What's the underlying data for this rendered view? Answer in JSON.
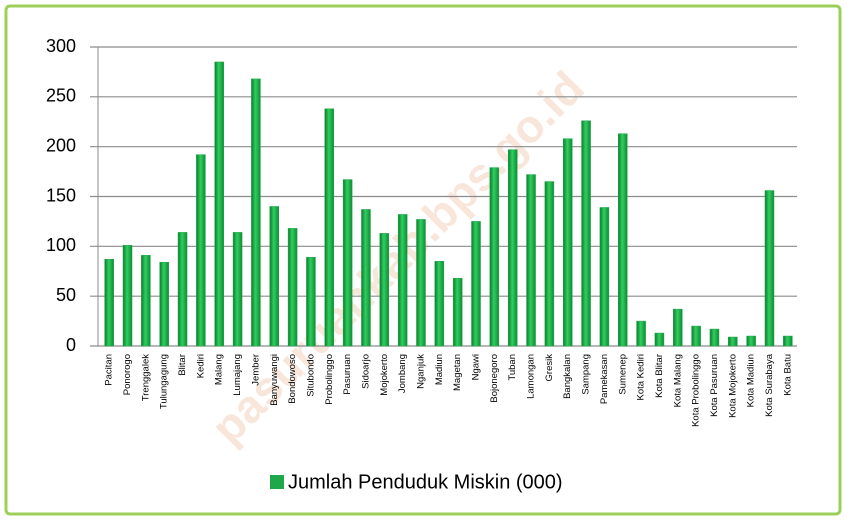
{
  "chart_data": {
    "type": "bar",
    "watermark": "pasuruankab.bps.go.id",
    "categories": [
      "Pacitan",
      "Ponorogo",
      "Trenggalek",
      "Tulungagung",
      "Blitar",
      "Kediri",
      "Malang",
      "Lumajang",
      "Jember",
      "Banyuwangi",
      "Bondowoso",
      "Situbondo",
      "Probolinggo",
      "Pasuruan",
      "Sidoarjo",
      "Mojokerto",
      "Jombang",
      "Nganjuk",
      "Madiun",
      "Magetan",
      "Ngawi",
      "Bojonegoro",
      "Tuban",
      "Lamongan",
      "Gresik",
      "Bangkalan",
      "Sampang",
      "Pamekasan",
      "Sumenep",
      "Kota Kediri",
      "Kota Blitar",
      "Kota Malang",
      "Kota Probolinggo",
      "Kota Pasuruan",
      "Kota Mojokerto",
      "Kota Madiun",
      "Kota Surabaya",
      "Kota Batu"
    ],
    "series": [
      {
        "name": "Jumlah Penduduk Miskin (000)",
        "color": "#1fa84a",
        "values": [
          87,
          101,
          91,
          84,
          114,
          192,
          285,
          114,
          268,
          140,
          118,
          89,
          238,
          167,
          137,
          113,
          132,
          127,
          85,
          68,
          125,
          179,
          197,
          172,
          165,
          208,
          226,
          139,
          213,
          25,
          13,
          37,
          20,
          17,
          9,
          10,
          156,
          10
        ]
      }
    ],
    "ylim": [
      0,
      300
    ],
    "yticks": [
      0,
      50,
      100,
      150,
      200,
      250,
      300
    ],
    "grid": true,
    "legend": "bottom"
  }
}
